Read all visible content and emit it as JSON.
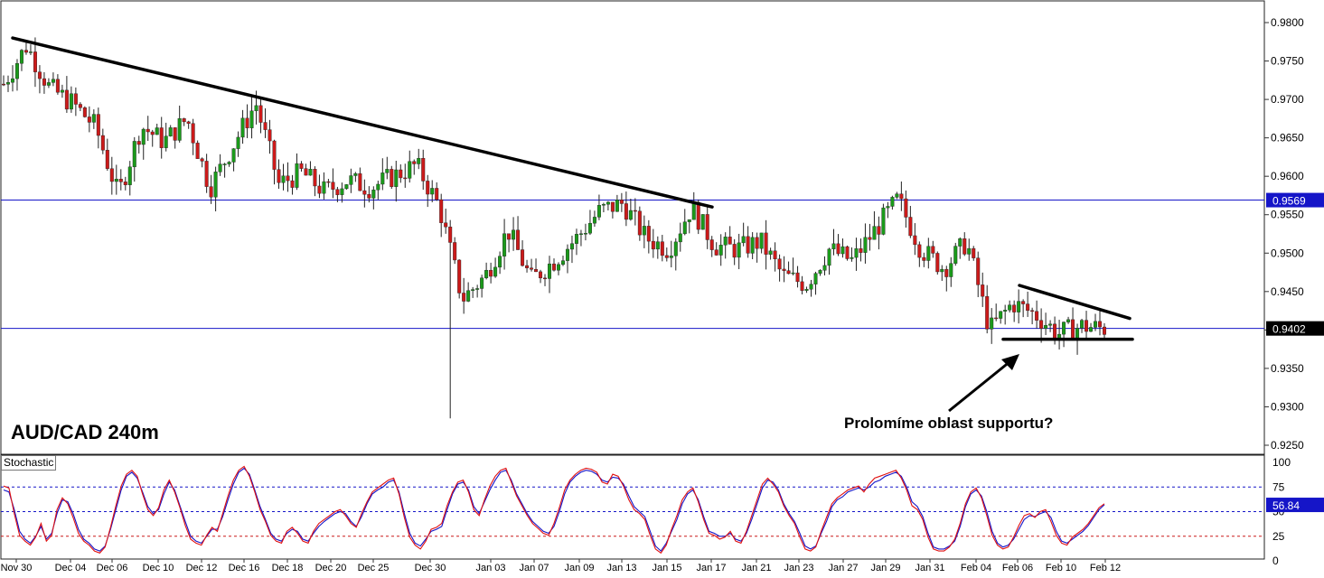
{
  "chart_data": [
    {
      "type": "candlestick",
      "title": "AUD/CAD 240m",
      "ylim": [
        0.9225,
        0.9825
      ],
      "y_ticks": [
        "0.9800",
        "0.9750",
        "0.9700",
        "0.9650",
        "0.9600",
        "0.9550",
        "0.9500",
        "0.9450",
        "0.9400",
        "0.9350",
        "0.9300",
        "0.9250"
      ],
      "x_ticks": [
        "Nov 30",
        "Dec 04",
        "Dec 06",
        "Dec 10",
        "Dec 12",
        "Dec 16",
        "Dec 18",
        "Dec 20",
        "Dec 25",
        "Dec 30",
        "Jan 03",
        "Jan 07",
        "Jan 09",
        "Jan 13",
        "Jan 15",
        "Jan 17",
        "Jan 21",
        "Jan 23",
        "Jan 27",
        "Jan 29",
        "Jan 31",
        "Feb 04",
        "Feb 06",
        "Feb 10",
        "Feb 12"
      ],
      "horizontal_levels": [
        {
          "label": "0.9569",
          "value": 0.9569,
          "color": "#1515c8"
        },
        {
          "label": "0.9402",
          "value": 0.9402,
          "color": "#000000"
        }
      ],
      "trendlines": [
        {
          "name": "downtrend",
          "points": [
            [
              "Nov 30",
              0.978
            ],
            [
              "Jan 17",
              0.956
            ]
          ]
        },
        {
          "name": "triangle-top",
          "points": [
            [
              "Feb 04",
              0.9458
            ],
            [
              "Feb 12",
              0.9415
            ]
          ]
        },
        {
          "name": "triangle-support",
          "points": [
            [
              "Feb 04",
              0.9388
            ],
            [
              "Feb 12",
              0.9388
            ]
          ]
        }
      ],
      "price_path": [
        [
          "Nov 30",
          0.972
        ],
        [
          "Nov 30",
          0.977
        ],
        [
          "Dec 04",
          0.9715
        ],
        [
          "Dec 04",
          0.9695
        ],
        [
          "Dec 06",
          0.9665
        ],
        [
          "Dec 06",
          0.9575
        ],
        [
          "Dec 10",
          0.9665
        ],
        [
          "Dec 10",
          0.9645
        ],
        [
          "Dec 12",
          0.9675
        ],
        [
          "Dec 12",
          0.9585
        ],
        [
          "Dec 16",
          0.964
        ],
        [
          "Dec 16",
          0.9695
        ],
        [
          "Dec 18",
          0.959
        ],
        [
          "Dec 18",
          0.9605
        ],
        [
          "Dec 20",
          0.958
        ],
        [
          "Dec 20",
          0.9595
        ],
        [
          "Dec 25",
          0.9585
        ],
        [
          "Dec 25",
          0.96
        ],
        [
          "Dec 30",
          0.9615
        ],
        [
          "Dec 30",
          0.956
        ],
        [
          "Dec 30",
          0.944
        ],
        [
          "Jan 03",
          0.947
        ],
        [
          "Jan 03",
          0.953
        ],
        [
          "Jan 07",
          0.9465
        ],
        [
          "Jan 07",
          0.949
        ],
        [
          "Jan 09",
          0.952
        ],
        [
          "Jan 09",
          0.9555
        ],
        [
          "Jan 13",
          0.9565
        ],
        [
          "Jan 13",
          0.952
        ],
        [
          "Jan 15",
          0.9505
        ],
        [
          "Jan 15",
          0.956
        ],
        [
          "Jan 17",
          0.951
        ],
        [
          "Jan 21",
          0.9505
        ],
        [
          "Jan 21",
          0.9515
        ],
        [
          "Jan 23",
          0.947
        ],
        [
          "Jan 23",
          0.946
        ],
        [
          "Jan 27",
          0.9505
        ],
        [
          "Jan 27",
          0.949
        ],
        [
          "Jan 29",
          0.953
        ],
        [
          "Jan 29",
          0.957
        ],
        [
          "Jan 31",
          0.9505
        ],
        [
          "Jan 31",
          0.948
        ],
        [
          "Feb 04",
          0.9515
        ],
        [
          "Feb 04",
          0.94
        ],
        [
          "Feb 06",
          0.9435
        ],
        [
          "Feb 06",
          0.942
        ],
        [
          "Feb 10",
          0.9395
        ],
        [
          "Feb 10",
          0.9405
        ],
        [
          "Feb 12",
          0.9402
        ]
      ]
    },
    {
      "type": "line",
      "title": "Stochastic",
      "ylim": [
        0,
        100
      ],
      "y_ticks": [
        "100",
        "75",
        "50",
        "25",
        "0"
      ],
      "levels": [
        75,
        50,
        25
      ],
      "current_value": "56.84",
      "series": [
        {
          "color": "#1414c8",
          "values": [
            72,
            70,
            52,
            30,
            22,
            18,
            25,
            35,
            22,
            28,
            48,
            62,
            60,
            48,
            32,
            22,
            18,
            12,
            10,
            15,
            32,
            52,
            72,
            86,
            90,
            84,
            70,
            55,
            48,
            52,
            68,
            80,
            72,
            56,
            40,
            25,
            20,
            18,
            25,
            32,
            32,
            45,
            62,
            78,
            90,
            94,
            88,
            72,
            55,
            42,
            28,
            22,
            20,
            28,
            32,
            30,
            22,
            20,
            28,
            35,
            40,
            44,
            48,
            50,
            48,
            40,
            35,
            45,
            58,
            68,
            72,
            75,
            80,
            82,
            70,
            48,
            28,
            18,
            15,
            22,
            30,
            32,
            35,
            52,
            68,
            78,
            80,
            72,
            55,
            48,
            60,
            72,
            82,
            90,
            92,
            82,
            68,
            58,
            48,
            40,
            35,
            30,
            28,
            35,
            50,
            68,
            80,
            86,
            90,
            92,
            91,
            88,
            82,
            80,
            85,
            84,
            78,
            66,
            55,
            50,
            45,
            30,
            15,
            10,
            18,
            30,
            42,
            58,
            68,
            72,
            62,
            45,
            30,
            28,
            25,
            25,
            28,
            22,
            20,
            28,
            42,
            58,
            74,
            82,
            80,
            72,
            58,
            48,
            40,
            28,
            15,
            12,
            15,
            28,
            40,
            55,
            62,
            65,
            70,
            72,
            74,
            72,
            75,
            80,
            82,
            86,
            88,
            90,
            86,
            75,
            60,
            55,
            45,
            28,
            14,
            12,
            12,
            15,
            20,
            35,
            55,
            68,
            72,
            66,
            50,
            30,
            18,
            14,
            16,
            22,
            32,
            42,
            46,
            45,
            48,
            50,
            44,
            30,
            20,
            18,
            22,
            26,
            30,
            36,
            44,
            52,
            57
          ]
        },
        {
          "color": "#e01010",
          "values": [
            76,
            74,
            48,
            26,
            20,
            16,
            24,
            38,
            20,
            26,
            52,
            64,
            58,
            44,
            28,
            20,
            16,
            10,
            8,
            14,
            34,
            56,
            76,
            88,
            92,
            86,
            68,
            52,
            46,
            54,
            72,
            82,
            70,
            54,
            36,
            22,
            18,
            16,
            26,
            34,
            30,
            48,
            66,
            82,
            92,
            96,
            86,
            70,
            52,
            40,
            26,
            20,
            18,
            30,
            34,
            28,
            20,
            18,
            30,
            38,
            42,
            46,
            50,
            52,
            46,
            38,
            34,
            48,
            60,
            70,
            74,
            78,
            82,
            84,
            68,
            44,
            24,
            16,
            12,
            20,
            32,
            34,
            38,
            56,
            70,
            80,
            82,
            70,
            52,
            46,
            62,
            76,
            86,
            92,
            94,
            80,
            66,
            56,
            46,
            38,
            33,
            28,
            26,
            38,
            54,
            72,
            82,
            88,
            92,
            94,
            93,
            90,
            80,
            78,
            88,
            86,
            76,
            62,
            52,
            48,
            42,
            26,
            12,
            8,
            16,
            32,
            46,
            62,
            70,
            74,
            60,
            42,
            28,
            26,
            22,
            24,
            30,
            20,
            18,
            30,
            46,
            62,
            78,
            84,
            78,
            70,
            56,
            46,
            38,
            24,
            12,
            10,
            14,
            30,
            44,
            58,
            64,
            68,
            72,
            74,
            76,
            70,
            78,
            84,
            86,
            88,
            90,
            92,
            84,
            72,
            56,
            52,
            42,
            24,
            12,
            10,
            10,
            14,
            22,
            38,
            58,
            70,
            74,
            64,
            46,
            26,
            16,
            12,
            14,
            24,
            36,
            46,
            48,
            44,
            50,
            52,
            40,
            26,
            18,
            16,
            24,
            28,
            32,
            38,
            46,
            54,
            58
          ]
        }
      ]
    }
  ],
  "annotation": "Prolomíme oblast supportu?",
  "colors": {
    "bull": "#1a9a1a",
    "bear": "#cc1a1a",
    "level_line": "#1515c8",
    "stoch_main": "#1414c8",
    "stoch_signal": "#e01010",
    "grid_dash": "#1515c8",
    "stoch_dash_low": "#cc1a1a"
  }
}
